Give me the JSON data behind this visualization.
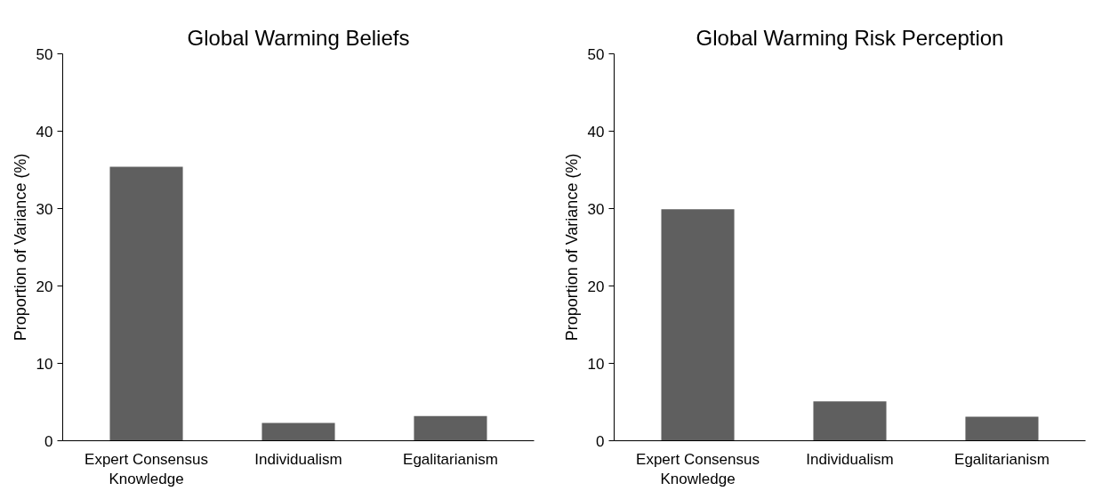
{
  "chart_data": [
    {
      "type": "bar",
      "title": "Global Warming Beliefs",
      "ylabel": "Proportion of Variance (%)",
      "categories": [
        "Expert Consensus Knowledge",
        "Individualism",
        "Egalitarianism"
      ],
      "values": [
        35.4,
        2.3,
        3.2
      ],
      "color": "#5f5f5f",
      "ylim": [
        0,
        50
      ],
      "yticks": [
        0,
        10,
        20,
        30,
        40,
        50
      ],
      "grid": false
    },
    {
      "type": "bar",
      "title": "Global Warming Risk Perception",
      "ylabel": "Proportion of Variance (%)",
      "categories": [
        "Expert Consensus Knowledge",
        "Individualism",
        "Egalitarianism"
      ],
      "values": [
        29.9,
        5.1,
        3.1
      ],
      "color": "#5f5f5f",
      "ylim": [
        0,
        50
      ],
      "yticks": [
        0,
        10,
        20,
        30,
        40,
        50
      ],
      "grid": false
    }
  ]
}
